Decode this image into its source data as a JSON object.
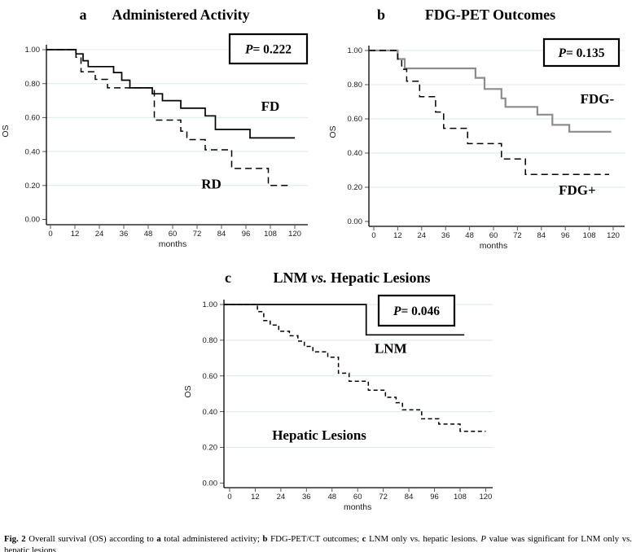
{
  "figure": {
    "caption": [
      {
        "t": "Fig. 2",
        "b": true
      },
      {
        "t": " Overall survival (OS) according to "
      },
      {
        "t": "a",
        "b": true
      },
      {
        "t": " total administered activity; "
      },
      {
        "t": "b",
        "b": true
      },
      {
        "t": " FDG-PET/CT outcomes; "
      },
      {
        "t": "c",
        "b": true
      },
      {
        "t": " LNM only vs. hepatic lesions. "
      },
      {
        "t": "P",
        "i": true
      },
      {
        "t": " value was significant for LNM only vs. hepatic lesions"
      }
    ]
  },
  "chart_data": [
    {
      "id": "a",
      "type": "line",
      "panel_letter": "a",
      "title_segments": [
        {
          "t": "Administered Activity"
        }
      ],
      "p_segments": [
        {
          "t": "P",
          "i": true
        },
        {
          "t": "= 0.222"
        }
      ],
      "xlabel": "months",
      "ylabel": "OS",
      "xlim": [
        0,
        120
      ],
      "ylim": [
        0.0,
        1.0
      ],
      "grid": true,
      "xticks": [
        0,
        12,
        24,
        36,
        48,
        60,
        72,
        84,
        96,
        108,
        120
      ],
      "yticks": [
        {
          "v": 1.0,
          "label": "1.00"
        },
        {
          "v": 0.8,
          "label": "0.80"
        },
        {
          "v": 0.6,
          "label": "0.60"
        },
        {
          "v": 0.4,
          "label": "0.40"
        },
        {
          "v": 0.2,
          "label": "0.20"
        },
        {
          "v": 0.0,
          "label": "0.00"
        }
      ],
      "series": [
        {
          "name": "FD",
          "label": "FD",
          "line": "solid",
          "color": "#000000",
          "label_anchor": {
            "x": 108,
            "y": 0.67
          },
          "points": [
            [
              0,
              1
            ],
            [
              12.5,
              1
            ],
            [
              12.5,
              0.975
            ],
            [
              16,
              0.975
            ],
            [
              16,
              0.935
            ],
            [
              18.5,
              0.935
            ],
            [
              18.5,
              0.9
            ],
            [
              31,
              0.9
            ],
            [
              31,
              0.865
            ],
            [
              35,
              0.865
            ],
            [
              35,
              0.82
            ],
            [
              39,
              0.82
            ],
            [
              39,
              0.775
            ],
            [
              50,
              0.775
            ],
            [
              50,
              0.74
            ],
            [
              55,
              0.74
            ],
            [
              55,
              0.7
            ],
            [
              64,
              0.7
            ],
            [
              64,
              0.655
            ],
            [
              76,
              0.655
            ],
            [
              76,
              0.61
            ],
            [
              81,
              0.61
            ],
            [
              81,
              0.53
            ],
            [
              98,
              0.53
            ],
            [
              98,
              0.48
            ],
            [
              120,
              0.48
            ]
          ]
        },
        {
          "name": "RD",
          "label": "RD",
          "line": "dashed",
          "color": "#000000",
          "label_anchor": {
            "x": 79,
            "y": 0.21
          },
          "points": [
            [
              0,
              1
            ],
            [
              12.5,
              1
            ],
            [
              12.5,
              0.955
            ],
            [
              15,
              0.955
            ],
            [
              15,
              0.87
            ],
            [
              22,
              0.87
            ],
            [
              22,
              0.825
            ],
            [
              28,
              0.825
            ],
            [
              28,
              0.775
            ],
            [
              51,
              0.775
            ],
            [
              51,
              0.585
            ],
            [
              64,
              0.585
            ],
            [
              64,
              0.52
            ],
            [
              67,
              0.52
            ],
            [
              67,
              0.47
            ],
            [
              76,
              0.47
            ],
            [
              76,
              0.41
            ],
            [
              89,
              0.41
            ],
            [
              89,
              0.3
            ],
            [
              107,
              0.3
            ],
            [
              107,
              0.2
            ],
            [
              118,
              0.2
            ]
          ]
        }
      ]
    },
    {
      "id": "b",
      "type": "line",
      "panel_letter": "b",
      "title_segments": [
        {
          "t": "FDG-PET Outcomes"
        }
      ],
      "p_segments": [
        {
          "t": "P",
          "i": true
        },
        {
          "t": "= 0.135"
        }
      ],
      "xlabel": "months",
      "ylabel": "OS",
      "xlim": [
        0,
        120
      ],
      "ylim": [
        0.0,
        1.0
      ],
      "grid": true,
      "xticks": [
        0,
        12,
        24,
        36,
        48,
        60,
        72,
        84,
        96,
        108,
        120
      ],
      "yticks": [
        {
          "v": 1.0,
          "label": "1.00"
        },
        {
          "v": 0.8,
          "label": "0.80"
        },
        {
          "v": 0.6,
          "label": "0.60"
        },
        {
          "v": 0.4,
          "label": "0.40"
        },
        {
          "v": 0.2,
          "label": "0.20"
        },
        {
          "v": 0.0,
          "label": "0.00"
        }
      ],
      "series": [
        {
          "name": "FDG-",
          "label": "FDG-",
          "line": "solid",
          "color": "#8c8c8c",
          "label_anchor": {
            "x": 112,
            "y": 0.72
          },
          "points": [
            [
              0,
              1
            ],
            [
              12,
              1
            ],
            [
              12,
              0.95
            ],
            [
              15.5,
              0.95
            ],
            [
              15.5,
              0.895
            ],
            [
              51,
              0.895
            ],
            [
              51,
              0.84
            ],
            [
              55.5,
              0.84
            ],
            [
              55.5,
              0.775
            ],
            [
              64,
              0.775
            ],
            [
              64,
              0.72
            ],
            [
              66,
              0.72
            ],
            [
              66,
              0.67
            ],
            [
              82,
              0.67
            ],
            [
              82,
              0.625
            ],
            [
              89.5,
              0.625
            ],
            [
              89.5,
              0.565
            ],
            [
              98,
              0.565
            ],
            [
              98,
              0.525
            ],
            [
              119,
              0.525
            ]
          ]
        },
        {
          "name": "FDG+",
          "label": "FDG+",
          "line": "dashed",
          "color": "#000000",
          "label_anchor": {
            "x": 102,
            "y": 0.185
          },
          "points": [
            [
              0,
              1
            ],
            [
              12,
              1
            ],
            [
              12,
              0.95
            ],
            [
              14,
              0.95
            ],
            [
              14,
              0.89
            ],
            [
              16.5,
              0.89
            ],
            [
              16.5,
              0.82
            ],
            [
              23,
              0.82
            ],
            [
              23,
              0.73
            ],
            [
              31,
              0.73
            ],
            [
              31,
              0.64
            ],
            [
              35,
              0.64
            ],
            [
              35,
              0.545
            ],
            [
              47,
              0.545
            ],
            [
              47,
              0.455
            ],
            [
              64,
              0.455
            ],
            [
              64,
              0.365
            ],
            [
              76,
              0.365
            ],
            [
              76,
              0.275
            ],
            [
              118,
              0.275
            ]
          ]
        }
      ]
    },
    {
      "id": "c",
      "type": "line",
      "panel_letter": "c",
      "title_segments": [
        {
          "t": "LNM "
        },
        {
          "t": "vs.",
          "i": true
        },
        {
          "t": " Hepatic Lesions"
        }
      ],
      "p_segments": [
        {
          "t": "P",
          "i": true
        },
        {
          "t": "= 0.046"
        }
      ],
      "xlabel": "months",
      "ylabel": "OS",
      "xlim": [
        0,
        120
      ],
      "ylim": [
        0.0,
        1.0
      ],
      "grid": true,
      "xticks": [
        0,
        12,
        24,
        36,
        48,
        60,
        72,
        84,
        96,
        108,
        120
      ],
      "yticks": [
        {
          "v": 1.0,
          "label": "1.00"
        },
        {
          "v": 0.8,
          "label": "0.80"
        },
        {
          "v": 0.6,
          "label": "0.60"
        },
        {
          "v": 0.4,
          "label": "0.40"
        },
        {
          "v": 0.2,
          "label": "0.20"
        },
        {
          "v": 0.0,
          "label": "0.00"
        }
      ],
      "series": [
        {
          "name": "LNM",
          "label": "LNM",
          "line": "solid",
          "color": "#000000",
          "label_anchor": {
            "x": 75.5,
            "y": 0.755
          },
          "points": [
            [
              0,
              1
            ],
            [
              64,
              1
            ],
            [
              64,
              0.83
            ],
            [
              110,
              0.83
            ]
          ]
        },
        {
          "name": "Hepatic Lesions",
          "label": "Hepatic Lesions",
          "line": "dashed-fine",
          "color": "#000000",
          "label_anchor": {
            "x": 42,
            "y": 0.27
          },
          "points": [
            [
              0,
              1
            ],
            [
              13,
              1
            ],
            [
              13,
              0.96
            ],
            [
              16,
              0.96
            ],
            [
              16,
              0.91
            ],
            [
              19,
              0.91
            ],
            [
              19,
              0.885
            ],
            [
              23,
              0.885
            ],
            [
              23,
              0.85
            ],
            [
              28,
              0.85
            ],
            [
              28,
              0.825
            ],
            [
              32,
              0.825
            ],
            [
              32,
              0.795
            ],
            [
              35,
              0.795
            ],
            [
              35,
              0.765
            ],
            [
              39,
              0.765
            ],
            [
              39,
              0.735
            ],
            [
              46,
              0.735
            ],
            [
              46,
              0.705
            ],
            [
              51,
              0.705
            ],
            [
              51,
              0.615
            ],
            [
              56,
              0.615
            ],
            [
              56,
              0.57
            ],
            [
              65,
              0.57
            ],
            [
              65,
              0.52
            ],
            [
              73,
              0.52
            ],
            [
              73,
              0.48
            ],
            [
              78,
              0.48
            ],
            [
              78,
              0.45
            ],
            [
              81,
              0.45
            ],
            [
              81,
              0.41
            ],
            [
              90,
              0.41
            ],
            [
              90,
              0.36
            ],
            [
              98,
              0.36
            ],
            [
              98,
              0.33
            ],
            [
              108,
              0.33
            ],
            [
              108,
              0.29
            ],
            [
              120,
              0.29
            ]
          ]
        }
      ]
    }
  ]
}
